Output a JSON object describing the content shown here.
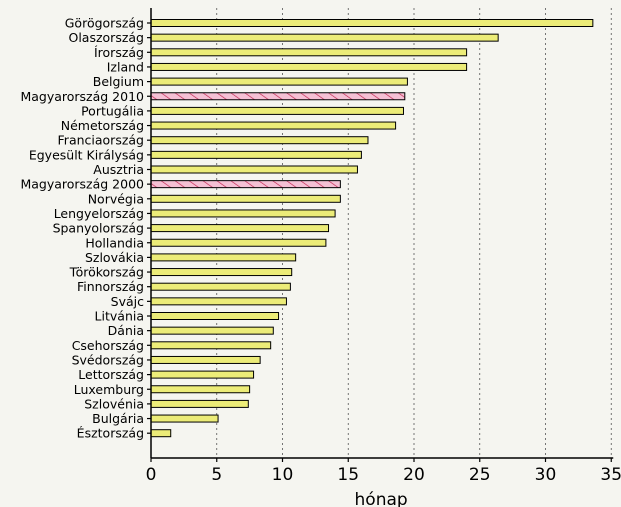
{
  "chart_data": {
    "type": "bar",
    "orientation": "horizontal",
    "xlabel": "hónap",
    "ylabel": "",
    "xlim": [
      0,
      35
    ],
    "xticks": [
      0,
      5,
      10,
      15,
      20,
      25,
      30,
      35
    ],
    "grid": "vertical dashed",
    "categories": [
      "Görögország",
      "Olaszország",
      "Írország",
      "Izland",
      "Belgium",
      "Magyarország 2010",
      "Portugália",
      "Németország",
      "Franciaország",
      "Egyesült Királyság",
      "Ausztria",
      "Magyarország 2000",
      "Norvégia",
      "Lengyelország",
      "Spanyolország",
      "Hollandia",
      "Szlovákia",
      "Törökország",
      "Finnország",
      "Svájc",
      "Litvánia",
      "Dánia",
      "Csehország",
      "Svédország",
      "Lettország",
      "Luxemburg",
      "Szlovénia",
      "Bulgária",
      "Észtország"
    ],
    "values": [
      33.6,
      26.4,
      24.0,
      24.0,
      19.5,
      19.3,
      19.2,
      18.6,
      16.5,
      16.0,
      15.7,
      14.4,
      14.4,
      14.0,
      13.5,
      13.3,
      11.0,
      10.7,
      10.6,
      10.3,
      9.7,
      9.3,
      9.1,
      8.3,
      7.8,
      7.5,
      7.4,
      5.1,
      1.5
    ],
    "highlighted": [
      "Magyarország 2010",
      "Magyarország 2000"
    ],
    "colors": {
      "bar": "#ecec78",
      "highlight": "#f5c0d4",
      "hatch": "#c0204c",
      "outline": "#000000",
      "grid": "#555555",
      "background": "#f5f5f0"
    }
  }
}
